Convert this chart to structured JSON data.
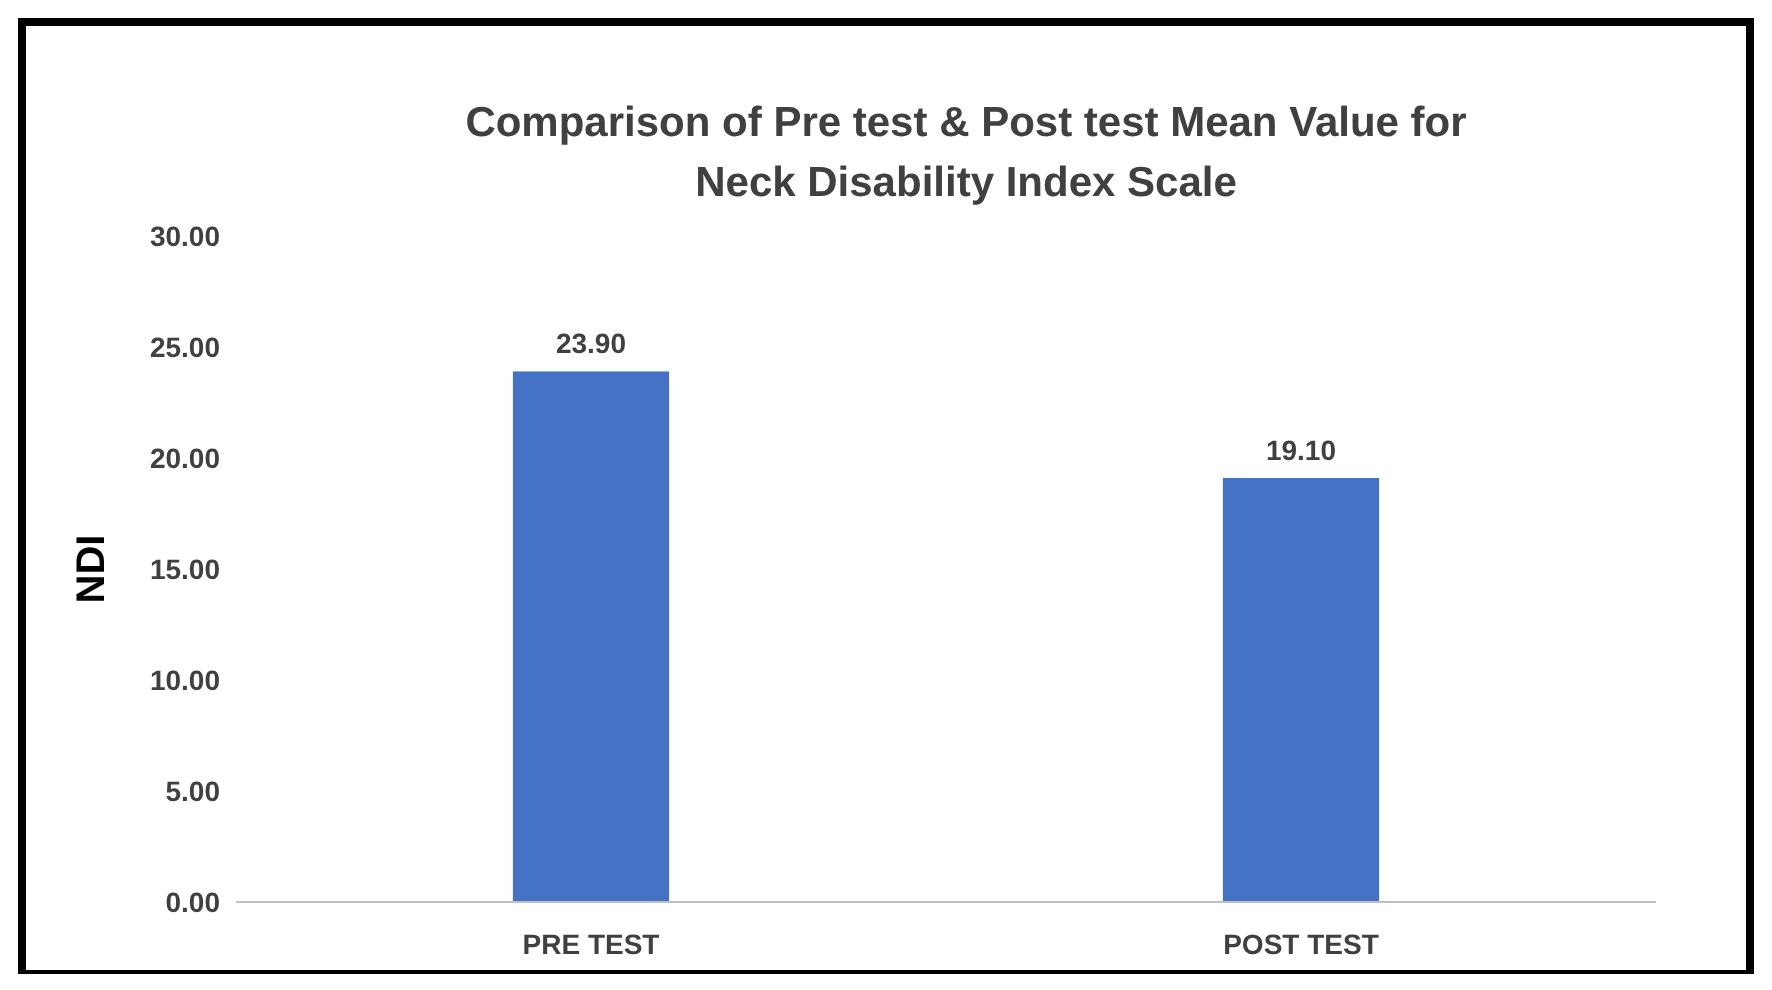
{
  "chart_data": {
    "type": "bar",
    "title": "Comparison of Pre test & Post test Mean Value for Neck Disability Index Scale",
    "ylabel": "NDI",
    "categories": [
      "PRE TEST",
      "POST TEST"
    ],
    "values": [
      23.9,
      19.1
    ],
    "value_labels": [
      "23.90",
      "19.10"
    ],
    "color": "#4472c4",
    "ylim": [
      0,
      30
    ],
    "yticks": [
      {
        "value": 0,
        "label": "0.00"
      },
      {
        "value": 5,
        "label": "5.00"
      },
      {
        "value": 10,
        "label": "10.00"
      },
      {
        "value": 15,
        "label": "15.00"
      },
      {
        "value": 20,
        "label": "20.00"
      },
      {
        "value": 25,
        "label": "25.00"
      },
      {
        "value": 30,
        "label": "30.00"
      }
    ],
    "grid": false
  }
}
